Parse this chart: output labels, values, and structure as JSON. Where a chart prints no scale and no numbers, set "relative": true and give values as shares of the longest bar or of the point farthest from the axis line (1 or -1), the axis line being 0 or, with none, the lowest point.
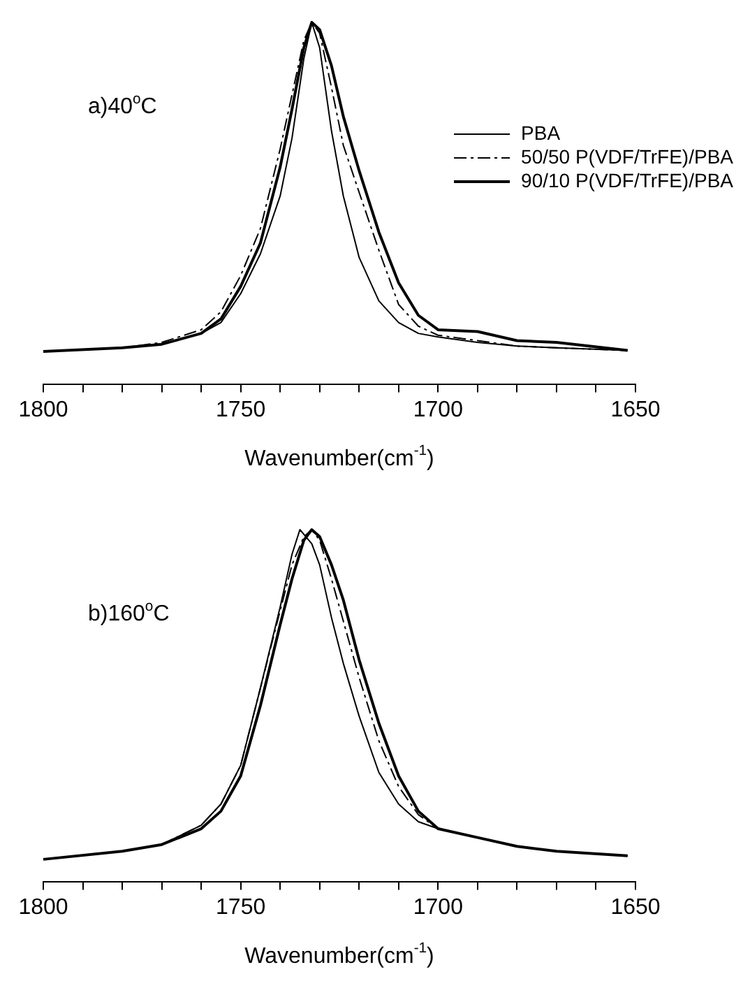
{
  "chart_data": [
    {
      "type": "line",
      "relative": true,
      "xlabel": "Wavenumber(cm$^{-1}$)",
      "annotations": [
        "a)40$^{o}$C"
      ],
      "xlim": [
        1800,
        1650
      ],
      "xticks": [
        1800,
        {
          "value": 1790,
          "label": null
        },
        {
          "value": 1780,
          "label": null
        },
        {
          "value": 1770,
          "label": null
        },
        {
          "value": 1760,
          "label": null
        },
        1750,
        {
          "value": 1740,
          "label": null
        },
        {
          "value": 1730,
          "label": null
        },
        {
          "value": 1720,
          "label": null
        },
        {
          "value": 1710,
          "label": null
        },
        1700,
        {
          "value": 1690,
          "label": null
        },
        {
          "value": 1680,
          "label": null
        },
        {
          "value": 1670,
          "label": null
        },
        {
          "value": 1660,
          "label": null
        },
        1650
      ],
      "x": [
        1800,
        1780,
        1770,
        1760,
        1755,
        1750,
        1745,
        1740,
        1737,
        1734,
        1732,
        1730,
        1727,
        1724,
        1720,
        1715,
        1710,
        1705,
        1700,
        1690,
        1680,
        1670,
        1652
      ],
      "legend": "top right",
      "tick_labels": "x",
      "grid": false,
      "series": [
        {
          "name": "PBA",
          "color": "#000000",
          "line_style": "solid",
          "values": [
            0.09,
            0.1,
            0.11,
            0.14,
            0.17,
            0.25,
            0.36,
            0.52,
            0.68,
            0.9,
            1.0,
            0.93,
            0.7,
            0.52,
            0.35,
            0.23,
            0.17,
            0.14,
            0.13,
            0.115,
            0.105,
            0.1,
            0.093
          ]
        },
        {
          "name": "50/50 P(VDF/TrFE)/PBA",
          "color": "#000000",
          "line_style": "dashed",
          "values": [
            0.09,
            0.1,
            0.115,
            0.15,
            0.2,
            0.3,
            0.43,
            0.65,
            0.8,
            0.95,
            1.0,
            0.97,
            0.82,
            0.66,
            0.53,
            0.37,
            0.22,
            0.16,
            0.135,
            0.12,
            0.105,
            0.1,
            0.093
          ]
        },
        {
          "name": "90/10 P(VDF/TrFE)/PBA",
          "color": "#000000",
          "line_style": "solid",
          "values": [
            0.09,
            0.1,
            0.11,
            0.14,
            0.18,
            0.27,
            0.39,
            0.6,
            0.76,
            0.93,
            1.0,
            0.98,
            0.88,
            0.74,
            0.59,
            0.42,
            0.28,
            0.19,
            0.15,
            0.145,
            0.12,
            0.115,
            0.093
          ]
        }
      ]
    },
    {
      "type": "line",
      "relative": true,
      "xlabel": "Wavenumber(cm$^{-1}$)",
      "annotations": [
        "b)160$^{o}$C"
      ],
      "xlim": [
        1800,
        1650
      ],
      "xticks": [
        1800,
        {
          "value": 1790,
          "label": null
        },
        {
          "value": 1780,
          "label": null
        },
        {
          "value": 1770,
          "label": null
        },
        {
          "value": 1760,
          "label": null
        },
        1750,
        {
          "value": 1740,
          "label": null
        },
        {
          "value": 1730,
          "label": null
        },
        {
          "value": 1720,
          "label": null
        },
        {
          "value": 1710,
          "label": null
        },
        1700,
        {
          "value": 1690,
          "label": null
        },
        {
          "value": 1680,
          "label": null
        },
        {
          "value": 1670,
          "label": null
        },
        {
          "value": 1660,
          "label": null
        },
        1650
      ],
      "tick_labels": "x",
      "grid": false,
      "series": [
        {
          "color": "#000000",
          "line_style": "solid",
          "x": [
            1800,
            1780,
            1770,
            1760,
            1755,
            1750,
            1745,
            1740,
            1737,
            1735,
            1732,
            1730,
            1727,
            1724,
            1720,
            1715,
            1710,
            1705,
            1700,
            1690,
            1680,
            1670,
            1652
          ],
          "values": [
            0.063,
            0.086,
            0.105,
            0.16,
            0.22,
            0.33,
            0.55,
            0.78,
            0.93,
            1.0,
            0.96,
            0.9,
            0.75,
            0.62,
            0.47,
            0.31,
            0.22,
            0.17,
            0.15,
            0.125,
            0.1,
            0.086,
            0.073
          ]
        },
        {
          "color": "#000000",
          "line_style": "dashed",
          "x": [
            1800,
            1780,
            1770,
            1760,
            1755,
            1750,
            1745,
            1740,
            1737,
            1734,
            1732,
            1730,
            1727,
            1724,
            1720,
            1715,
            1710,
            1705,
            1700,
            1690,
            1680,
            1670,
            1652
          ],
          "values": [
            0.063,
            0.086,
            0.105,
            0.16,
            0.22,
            0.33,
            0.55,
            0.77,
            0.9,
            0.98,
            1.0,
            0.97,
            0.86,
            0.74,
            0.58,
            0.4,
            0.27,
            0.19,
            0.15,
            0.125,
            0.1,
            0.086,
            0.073
          ]
        },
        {
          "color": "#000000",
          "line_style": "solid",
          "x": [
            1800,
            1780,
            1770,
            1760,
            1755,
            1750,
            1745,
            1740,
            1737,
            1734,
            1732,
            1730,
            1727,
            1724,
            1720,
            1715,
            1710,
            1705,
            1700,
            1690,
            1680,
            1670,
            1652
          ],
          "values": [
            0.063,
            0.086,
            0.105,
            0.15,
            0.2,
            0.3,
            0.5,
            0.73,
            0.86,
            0.97,
            1.0,
            0.98,
            0.9,
            0.8,
            0.63,
            0.45,
            0.3,
            0.2,
            0.15,
            0.125,
            0.1,
            0.086,
            0.073
          ]
        }
      ]
    }
  ]
}
